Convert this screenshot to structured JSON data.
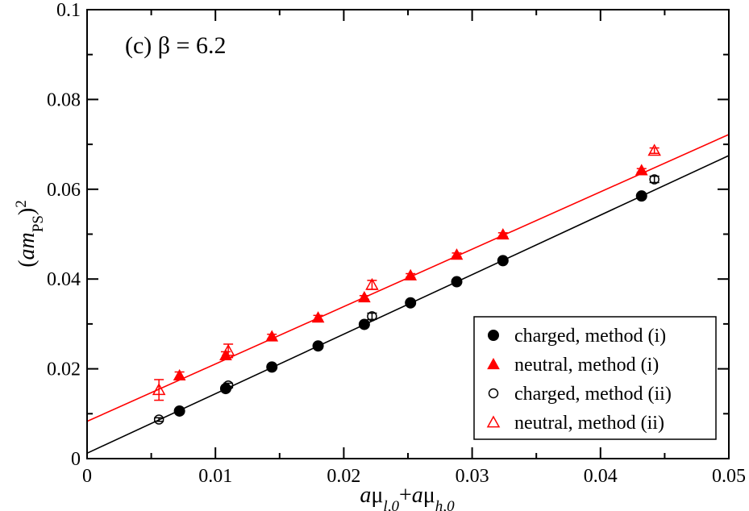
{
  "chart_data": {
    "type": "scatter",
    "annotation": "(c) β = 6.2",
    "xlim": [
      0,
      0.05
    ],
    "ylim": [
      0,
      0.1
    ],
    "x_ticks": [
      0,
      0.01,
      0.02,
      0.03,
      0.04,
      0.05
    ],
    "x_tick_labels": [
      "0",
      "0.01",
      "0.02",
      "0.03",
      "0.04",
      "0.05"
    ],
    "y_ticks": [
      0,
      0.02,
      0.04,
      0.06,
      0.08,
      0.1
    ],
    "y_tick_labels": [
      "0",
      "0.02",
      "0.04",
      "0.06",
      "0.08",
      "0.1"
    ],
    "xlabel": {
      "parts": [
        {
          "text": "a",
          "style": "italic"
        },
        {
          "text": "μ",
          "style": "normal"
        },
        {
          "text": "l,0",
          "style": "italic-sub"
        },
        {
          "text": "+",
          "style": "normal"
        },
        {
          "text": "a",
          "style": "italic"
        },
        {
          "text": "μ",
          "style": "normal"
        },
        {
          "text": "h,0",
          "style": "italic-sub"
        }
      ]
    },
    "ylabel": {
      "parts": [
        {
          "text": "(",
          "style": "normal"
        },
        {
          "text": "am",
          "style": "italic"
        },
        {
          "text": "PS",
          "style": "sub"
        },
        {
          "text": ")",
          "style": "normal"
        },
        {
          "text": "2",
          "style": "sup"
        }
      ]
    },
    "grid": false,
    "legend_position": "bottom-right",
    "series": [
      {
        "name": "charged, method (i)",
        "marker": "circle-filled",
        "color": "#000000",
        "points": [
          {
            "x": 0.0072,
            "y": 0.0106,
            "err": 0.0004
          },
          {
            "x": 0.0108,
            "y": 0.0156,
            "err": 0.0004
          },
          {
            "x": 0.0144,
            "y": 0.0204,
            "err": 0.0003
          },
          {
            "x": 0.018,
            "y": 0.0251,
            "err": 0.0003
          },
          {
            "x": 0.0216,
            "y": 0.0299,
            "err": 0.0003
          },
          {
            "x": 0.0252,
            "y": 0.0347,
            "err": 0.0003
          },
          {
            "x": 0.0288,
            "y": 0.0394,
            "err": 0.0003
          },
          {
            "x": 0.0324,
            "y": 0.0441,
            "err": 0.0003
          },
          {
            "x": 0.0432,
            "y": 0.0585,
            "err": 0.0003
          }
        ]
      },
      {
        "name": "neutral, method (i)",
        "marker": "triangle-filled",
        "color": "#ff0000",
        "points": [
          {
            "x": 0.0072,
            "y": 0.0185,
            "err": 0.0008
          },
          {
            "x": 0.0108,
            "y": 0.023,
            "err": 0.0008
          },
          {
            "x": 0.0144,
            "y": 0.0272,
            "err": 0.0005
          },
          {
            "x": 0.018,
            "y": 0.0314,
            "err": 0.0005
          },
          {
            "x": 0.0216,
            "y": 0.0359,
            "err": 0.0004
          },
          {
            "x": 0.0252,
            "y": 0.0408,
            "err": 0.0004
          },
          {
            "x": 0.0288,
            "y": 0.0454,
            "err": 0.0004
          },
          {
            "x": 0.0324,
            "y": 0.0499,
            "err": 0.0004
          },
          {
            "x": 0.0432,
            "y": 0.0642,
            "err": 0.0004
          }
        ]
      },
      {
        "name": "charged, method (ii)",
        "marker": "circle-open",
        "color": "#000000",
        "points": [
          {
            "x": 0.0056,
            "y": 0.0087,
            "err": 0.0004
          },
          {
            "x": 0.011,
            "y": 0.0163,
            "err": 0.0005
          },
          {
            "x": 0.0222,
            "y": 0.0317,
            "err": 0.0007
          },
          {
            "x": 0.0442,
            "y": 0.0622,
            "err": 0.0007
          }
        ]
      },
      {
        "name": "neutral, method (ii)",
        "marker": "triangle-open",
        "color": "#ff0000",
        "points": [
          {
            "x": 0.0056,
            "y": 0.0153,
            "err": 0.0023
          },
          {
            "x": 0.011,
            "y": 0.024,
            "err": 0.0015
          },
          {
            "x": 0.0222,
            "y": 0.0387,
            "err": 0.001
          },
          {
            "x": 0.0442,
            "y": 0.0686,
            "err": 0.0006
          }
        ]
      }
    ],
    "fit_lines": [
      {
        "color": "#000000",
        "x": [
          0,
          0.05
        ],
        "y": [
          0.0012,
          0.0675
        ]
      },
      {
        "color": "#ff0000",
        "x": [
          0,
          0.05
        ],
        "y": [
          0.0083,
          0.0722
        ]
      }
    ]
  }
}
